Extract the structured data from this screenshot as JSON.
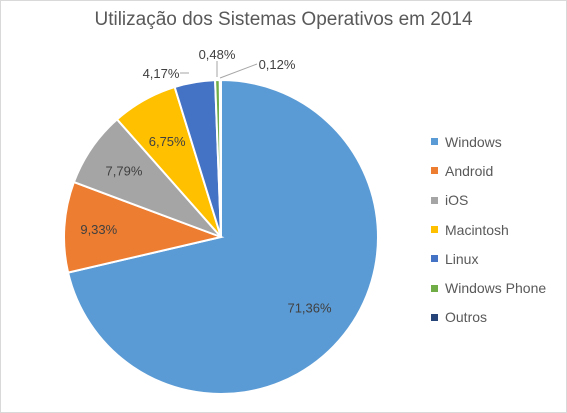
{
  "chart_data": {
    "type": "pie",
    "title": "Utilização dos Sistemas Operativos em 2014",
    "categories": [
      "Windows",
      "Android",
      "iOS",
      "Macintosh",
      "Linux",
      "Windows Phone",
      "Outros"
    ],
    "values": [
      71.36,
      9.33,
      7.79,
      6.75,
      4.17,
      0.48,
      0.12
    ],
    "data_labels": [
      "71,36%",
      "9,33%",
      "7,79%",
      "6,75%",
      "4,17%",
      "0,48%",
      "0,12%"
    ],
    "colors": [
      "#5b9bd5",
      "#ed7d31",
      "#a5a5a5",
      "#ffc000",
      "#4472c4",
      "#70ad47",
      "#264478"
    ],
    "legend_position": "right"
  }
}
